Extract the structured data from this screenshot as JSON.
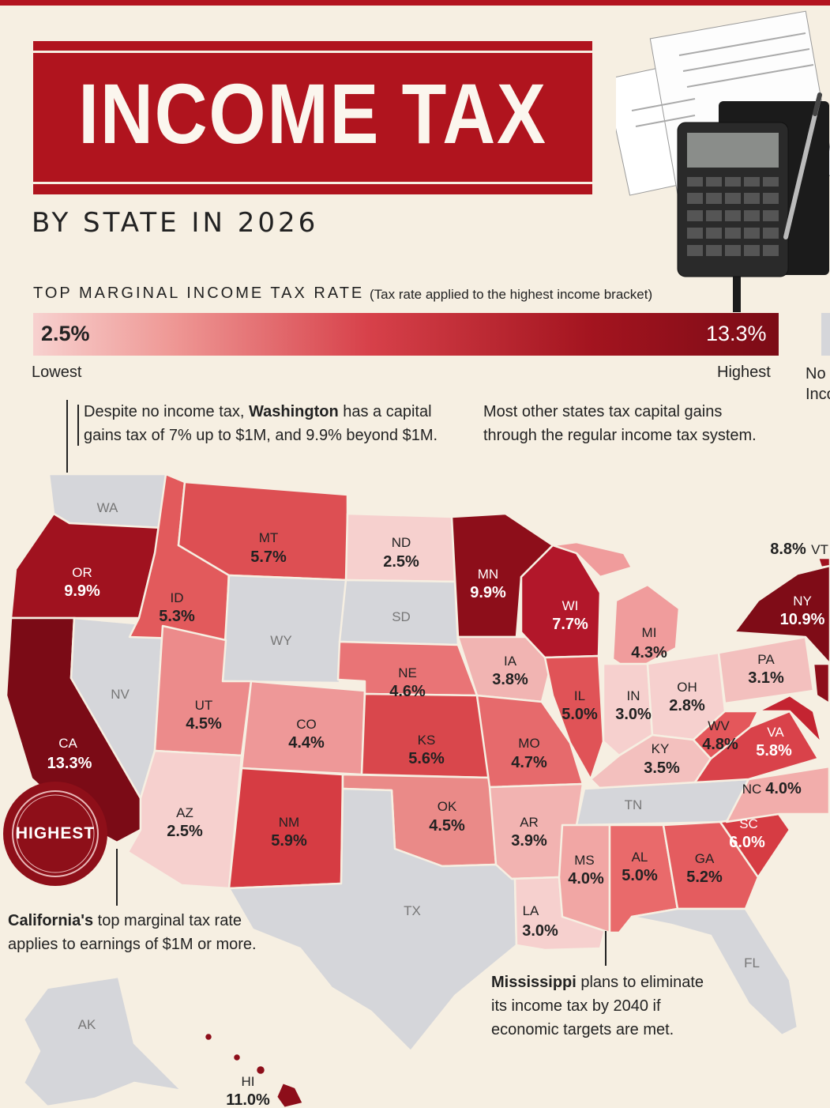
{
  "header": {
    "title": "INCOME TAX",
    "subtitle": "BY STATE IN 2026"
  },
  "legend": {
    "title": "TOP MARGINAL INCOME TAX RATE",
    "note": "(Tax rate applied to the highest income bracket)",
    "min_value": "2.5%",
    "max_value": "13.3%",
    "low_label": "Lowest",
    "high_label": "Highest",
    "no_income_label": "No Inco",
    "colors": {
      "low": "#f7d1cf",
      "mid": "#d7414a",
      "high": "#7b0b16",
      "none": "#d5d6da"
    }
  },
  "notes": {
    "washington_pre": "Despite no income tax, ",
    "washington_bold": "Washington",
    "washington_post1": " has a capital",
    "washington_line2": "gains tax of 7% up to $1M, and 9.9% beyond $1M.",
    "capital_gains_line1": "Most other states tax capital gains",
    "capital_gains_line2": "through the regular income tax system.",
    "california_bold": "California's",
    "california_post1": " top marginal tax rate",
    "california_line2": "applies to earnings of $1M or more.",
    "mississippi_bold": "Mississippi",
    "mississippi_post1": " plans to eliminate",
    "mississippi_line2": "its income tax by 2040 if",
    "mississippi_line3": "economic targets are met."
  },
  "seal": {
    "label": "HIGHEST"
  },
  "states": {
    "WA": {
      "abbr": "WA",
      "rate": ""
    },
    "OR": {
      "abbr": "OR",
      "rate": "9.9%"
    },
    "CA": {
      "abbr": "CA",
      "rate": "13.3%"
    },
    "NV": {
      "abbr": "NV",
      "rate": ""
    },
    "ID": {
      "abbr": "ID",
      "rate": "5.3%"
    },
    "MT": {
      "abbr": "MT",
      "rate": "5.7%"
    },
    "WY": {
      "abbr": "WY",
      "rate": ""
    },
    "UT": {
      "abbr": "UT",
      "rate": "4.5%"
    },
    "AZ": {
      "abbr": "AZ",
      "rate": "2.5%"
    },
    "CO": {
      "abbr": "CO",
      "rate": "4.4%"
    },
    "NM": {
      "abbr": "NM",
      "rate": "5.9%"
    },
    "ND": {
      "abbr": "ND",
      "rate": "2.5%"
    },
    "SD": {
      "abbr": "SD",
      "rate": ""
    },
    "NE": {
      "abbr": "NE",
      "rate": "4.6%"
    },
    "KS": {
      "abbr": "KS",
      "rate": "5.6%"
    },
    "OK": {
      "abbr": "OK",
      "rate": "4.5%"
    },
    "TX": {
      "abbr": "TX",
      "rate": ""
    },
    "MN": {
      "abbr": "MN",
      "rate": "9.9%"
    },
    "IA": {
      "abbr": "IA",
      "rate": "3.8%"
    },
    "MO": {
      "abbr": "MO",
      "rate": "4.7%"
    },
    "AR": {
      "abbr": "AR",
      "rate": "3.9%"
    },
    "LA": {
      "abbr": "LA",
      "rate": "3.0%"
    },
    "WI": {
      "abbr": "WI",
      "rate": "7.7%"
    },
    "IL": {
      "abbr": "IL",
      "rate": "5.0%"
    },
    "MI": {
      "abbr": "MI",
      "rate": "4.3%"
    },
    "IN": {
      "abbr": "IN",
      "rate": "3.0%"
    },
    "OH": {
      "abbr": "OH",
      "rate": "2.8%"
    },
    "KY": {
      "abbr": "KY",
      "rate": "3.5%"
    },
    "TN": {
      "abbr": "TN",
      "rate": ""
    },
    "MS": {
      "abbr": "MS",
      "rate": "4.0%"
    },
    "AL": {
      "abbr": "AL",
      "rate": "5.0%"
    },
    "GA": {
      "abbr": "GA",
      "rate": "5.2%"
    },
    "FL": {
      "abbr": "FL",
      "rate": ""
    },
    "SC": {
      "abbr": "SC",
      "rate": "6.0%"
    },
    "NC": {
      "abbr": "NC",
      "rate": "4.0%"
    },
    "VA": {
      "abbr": "VA",
      "rate": "5.8%"
    },
    "WV": {
      "abbr": "WV",
      "rate": "4.8%"
    },
    "PA": {
      "abbr": "PA",
      "rate": "3.1%"
    },
    "NY": {
      "abbr": "NY",
      "rate": "10.9%"
    },
    "VT": {
      "abbr": "VT",
      "rate": "8.8%"
    },
    "AK": {
      "abbr": "AK",
      "rate": ""
    },
    "HI": {
      "abbr": "HI",
      "rate": "11.0%"
    }
  }
}
